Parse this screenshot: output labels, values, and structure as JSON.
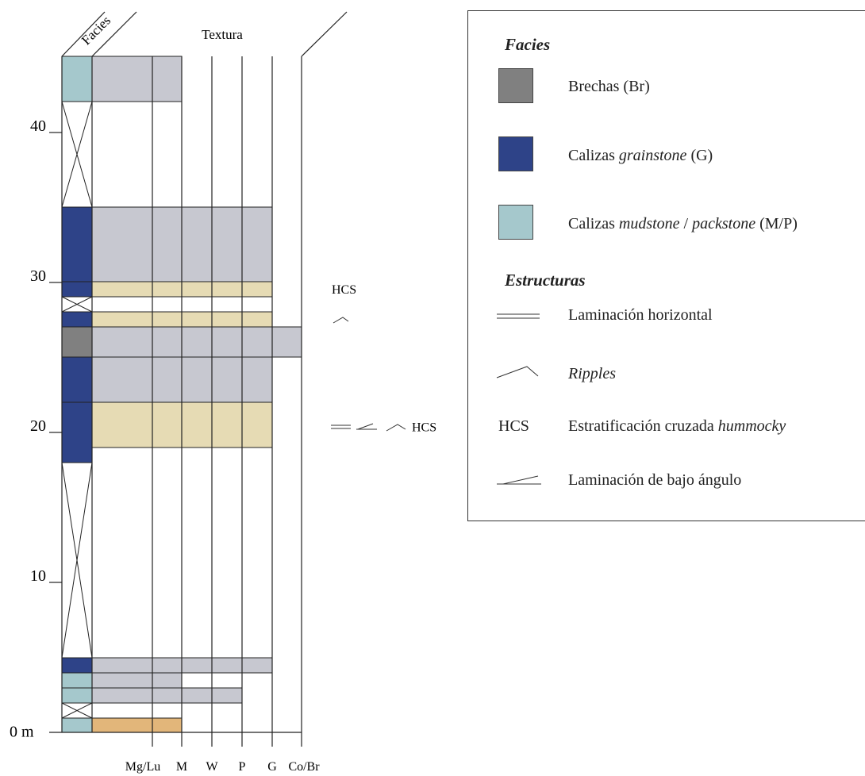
{
  "column": {
    "facies_header": "Facies",
    "texture_header": "Textura",
    "unit_label": "0 m",
    "scale_ticks": [
      "10",
      "20",
      "30",
      "40"
    ],
    "texture_classes": [
      "Mg/Lu",
      "M",
      "W",
      "P",
      "G",
      "Co/Br"
    ],
    "structure_annotations": {
      "hcs_upper": "HCS",
      "hcs_lower": "HCS"
    },
    "max_height_m": 45
  },
  "legend": {
    "facies_title": "Facies",
    "facies": [
      {
        "label": "Brechas (Br)",
        "parts": [
          "Brechas (Br)"
        ],
        "color": "#808080"
      },
      {
        "label": "Calizas grainstone (G)",
        "parts": [
          "Calizas ",
          "grainstone",
          " (G)"
        ],
        "color": "#2e4388"
      },
      {
        "label": "Calizas mudstone / packstone (M/P)",
        "parts": [
          "Calizas ",
          "mudstone",
          " / ",
          "packstone",
          " (M/P)"
        ],
        "color": "#a5c8cc"
      }
    ],
    "structures_title": "Estructuras",
    "structures": [
      {
        "symbol": "horizontal-lamination",
        "label": "Laminación horizontal",
        "parts": [
          "Laminación horizontal"
        ]
      },
      {
        "symbol": "ripples",
        "label": "Ripples",
        "parts": [
          "Ripples"
        ]
      },
      {
        "symbol": "hcs",
        "code": "HCS",
        "label": "Estratificación cruzada hummocky",
        "parts": [
          "Estratificación cruzada ",
          "hummocky"
        ]
      },
      {
        "symbol": "low-angle-lamination",
        "label": "Laminación de bajo ángulo",
        "parts": [
          "Laminación de bajo ángulo"
        ]
      }
    ]
  },
  "colors": {
    "breccia": "#808080",
    "grainstone": "#2e4388",
    "mudstone_packstone": "#a5c8cc",
    "texture_gray": "#c7c8d0",
    "texture_tan": "#e6dbb4",
    "texture_orange": "#e2b67a"
  }
}
